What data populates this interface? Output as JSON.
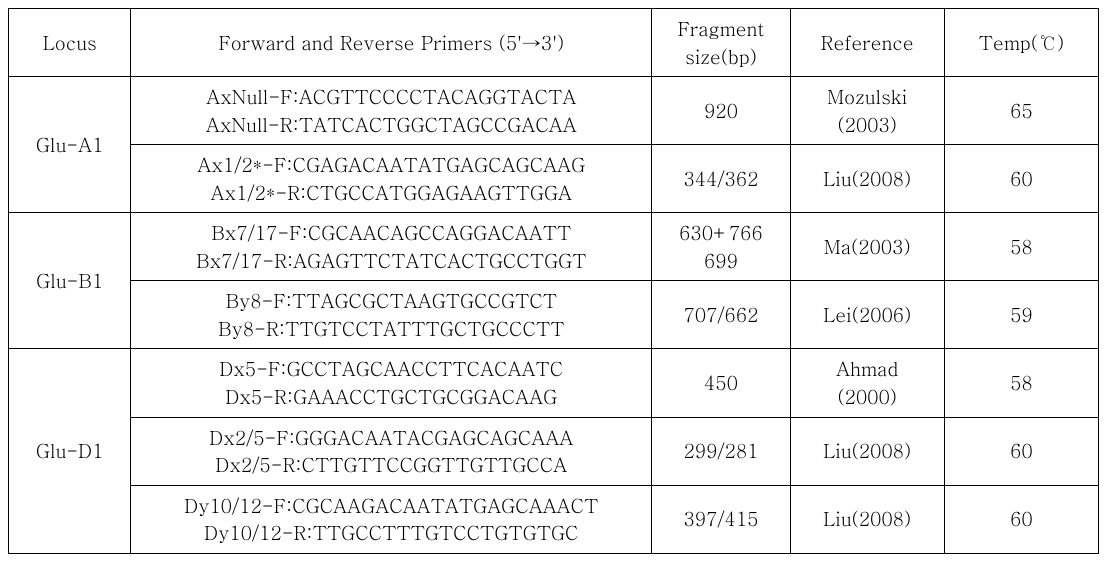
{
  "headers": {
    "locus": "Locus",
    "primers": "Forward and Reverse Primers (5'→3')",
    "frag_l1": "Fragment",
    "frag_l2": "size(bp)",
    "reference": "Reference",
    "temp": "Temp(℃)"
  },
  "loci": [
    {
      "name": "Glu-A1",
      "rows": [
        {
          "primer_l1": "AxNull-F:ACGTTCCCCTACAGGTACTA",
          "primer_l2": "AxNull-R:TATCACTGGCTAGCCGACAA",
          "frag_l1": "920",
          "frag_l2": "",
          "ref_l1": "Mozulski",
          "ref_l2": "(2003)",
          "temp": "65"
        },
        {
          "primer_l1": "Ax1/2*-F:CGAGACAATATGAGCAGCAAG",
          "primer_l2": "Ax1/2*-R:CTGCCATGGAGAAGTTGGA",
          "frag_l1": "344/362",
          "frag_l2": "",
          "ref_l1": "Liu(2008)",
          "ref_l2": "",
          "temp": "60"
        }
      ]
    },
    {
      "name": "Glu-B1",
      "rows": [
        {
          "primer_l1": "Bx7/17-F:CGCAACAGCCAGGACAATT",
          "primer_l2": "Bx7/17-R:AGAGTTCTATCACTGCCTGGT",
          "frag_l1": "630+766",
          "frag_l2": "699",
          "ref_l1": "Ma(2003)",
          "ref_l2": "",
          "temp": "58"
        },
        {
          "primer_l1": "By8-F:TTAGCGCTAAGTGCCGTCT",
          "primer_l2": "By8-R:TTGTCCTATTTGCTGCCCTT",
          "frag_l1": "707/662",
          "frag_l2": "",
          "ref_l1": "Lei(2006)",
          "ref_l2": "",
          "temp": "59"
        }
      ]
    },
    {
      "name": "Glu-D1",
      "rows": [
        {
          "primer_l1": "Dx5-F:GCCTAGCAACCTTCACAATC",
          "primer_l2": "Dx5-R:GAAACCTGCTGCGGACAAG",
          "frag_l1": "450",
          "frag_l2": "",
          "ref_l1": "Ahmad",
          "ref_l2": "(2000)",
          "temp": "58"
        },
        {
          "primer_l1": "Dx2/5-F:GGGACAATACGAGCAGCAAA",
          "primer_l2": "Dx2/5-R:CTTGTTCCGGTTGTTGCCA",
          "frag_l1": "299/281",
          "frag_l2": "",
          "ref_l1": "Liu(2008)",
          "ref_l2": "",
          "temp": "60"
        },
        {
          "primer_l1": "Dy10/12-F:CGCAAGACAATATGAGCAAACT",
          "primer_l2": "Dy10/12-R:TTGCCTTTGTCCTGTGTGC",
          "frag_l1": "397/415",
          "frag_l2": "",
          "ref_l1": "Liu(2008)",
          "ref_l2": "",
          "temp": "60"
        }
      ]
    }
  ]
}
